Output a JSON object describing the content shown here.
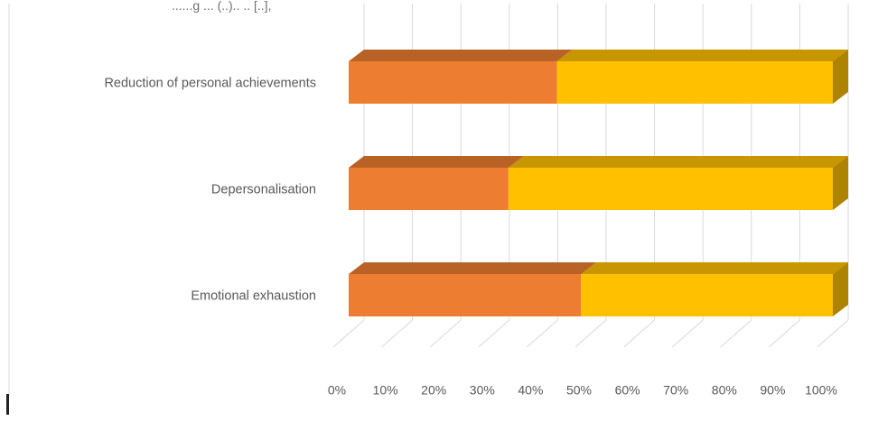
{
  "header_fragment": "......g ... (..).. .. [..],",
  "chart_data": {
    "type": "bar",
    "orientation": "horizontal",
    "stacked": "percent",
    "three_d": true,
    "categories": [
      "Reduction of personal achievements",
      "Depersonalisation",
      "Emotional exhaustion"
    ],
    "series": [
      {
        "values": [
          43,
          33,
          48
        ],
        "color": "#ED7D31"
      },
      {
        "values": [
          57,
          67,
          52
        ],
        "color": "#FFC000"
      }
    ],
    "x_ticks": [
      "0%",
      "10%",
      "20%",
      "30%",
      "40%",
      "50%",
      "60%",
      "70%",
      "80%",
      "90%",
      "100%"
    ],
    "xlim": [
      0,
      100
    ],
    "grid": true,
    "legend": "none"
  }
}
